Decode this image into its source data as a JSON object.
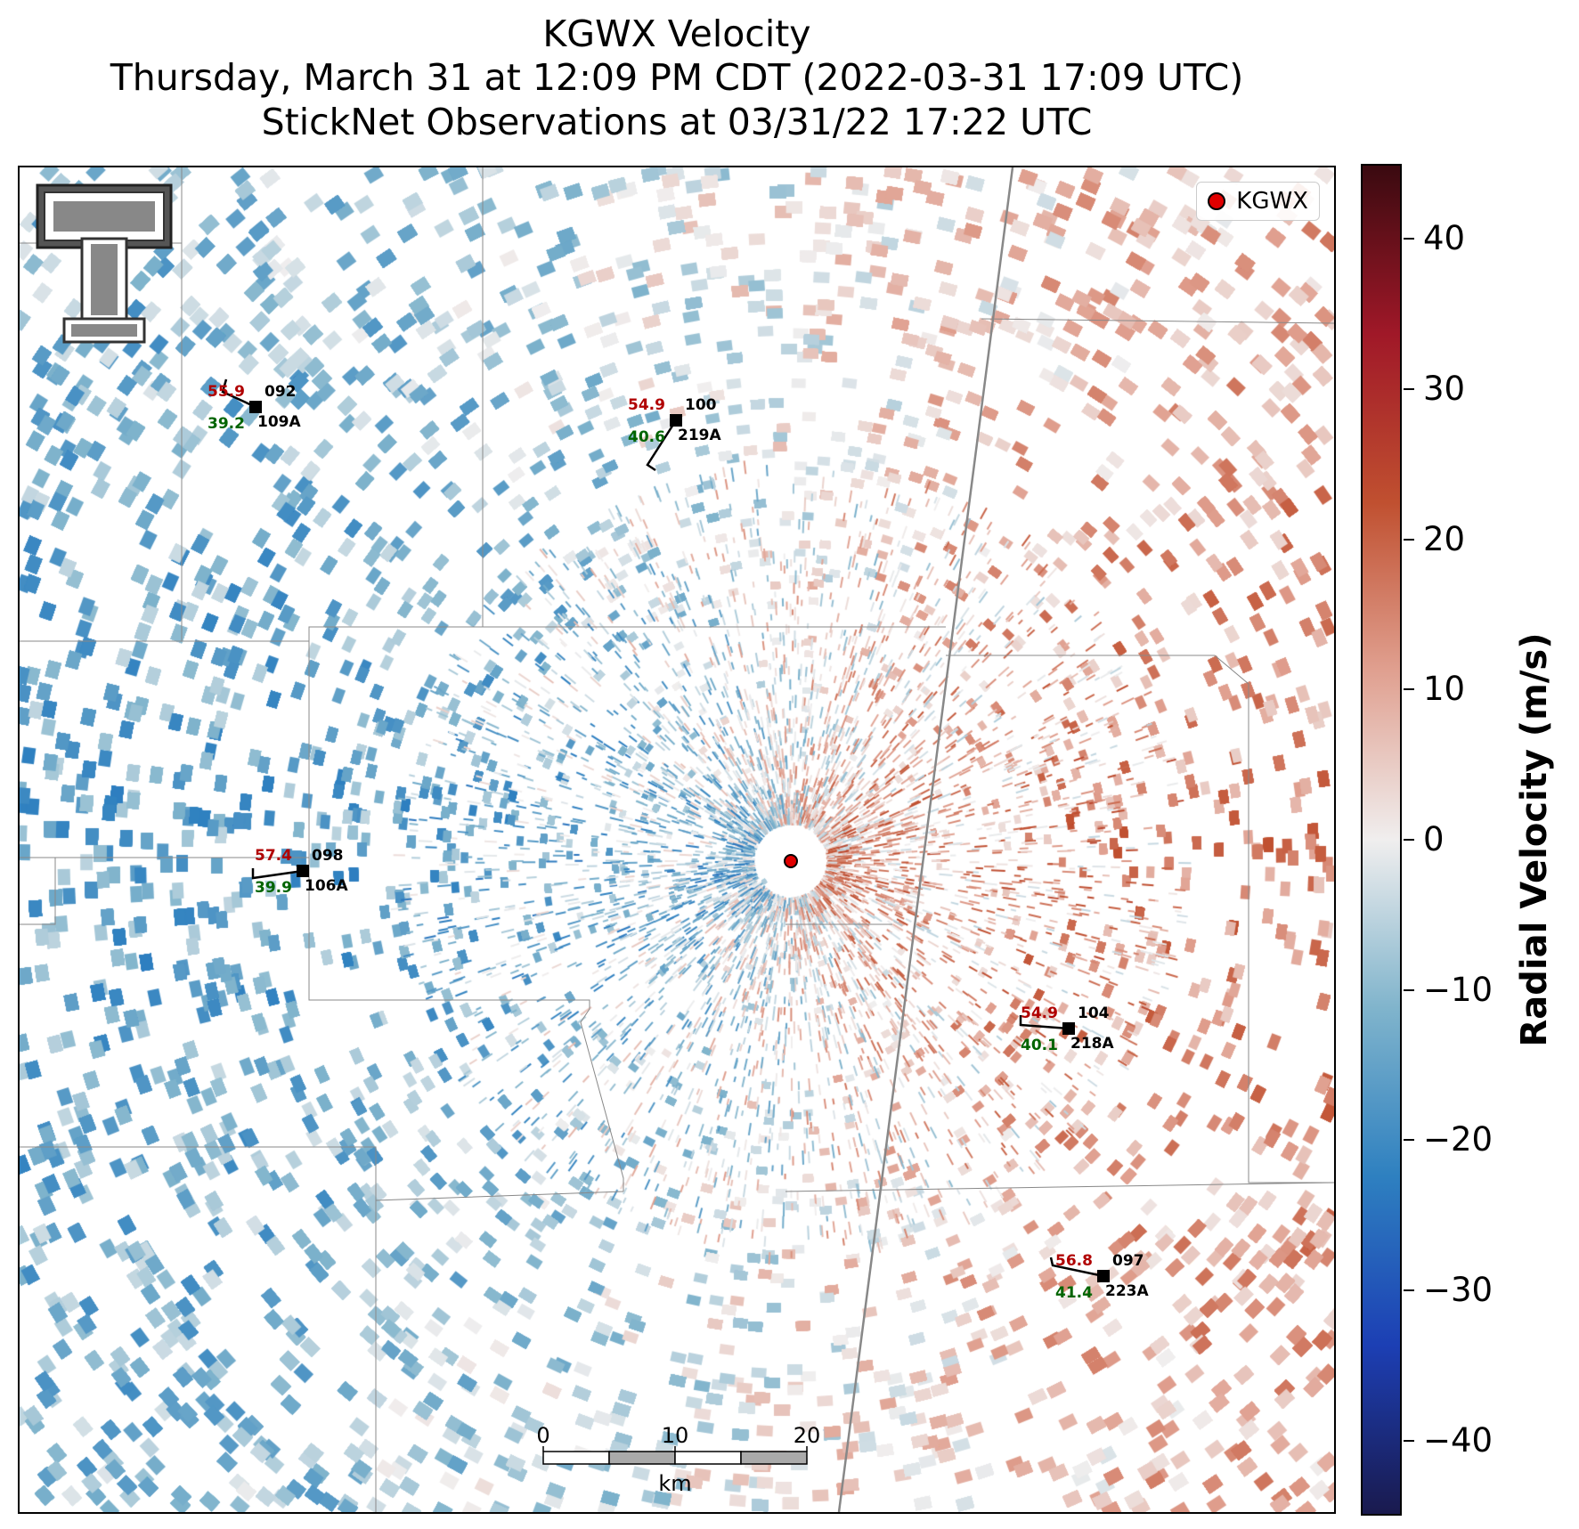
{
  "title": {
    "line1": "KGWX Velocity",
    "line2": "Thursday, March 31 at 12:09 PM CDT (2022-03-31 17:09 UTC)",
    "line3": "StickNet Observations at 03/31/22 17:22 UTC"
  },
  "legend": {
    "label": "KGWX",
    "marker_color": "#e00000"
  },
  "radar": {
    "name": "KGWX",
    "marker_color": "#e00000"
  },
  "stations": [
    {
      "id": "109A",
      "top_value": "55.9",
      "right_value": "092",
      "bottom_value": "39.2"
    },
    {
      "id": "219A",
      "top_value": "54.9",
      "right_value": "100",
      "bottom_value": "40.6"
    },
    {
      "id": "106A",
      "top_value": "57.4",
      "right_value": "098",
      "bottom_value": "39.9"
    },
    {
      "id": "218A",
      "top_value": "54.9",
      "right_value": "104",
      "bottom_value": "40.1"
    },
    {
      "id": "223A",
      "top_value": "56.8",
      "right_value": "097",
      "bottom_value": "41.4"
    }
  ],
  "colors": {
    "top_value": "#b00000",
    "bottom_value": "#006400",
    "id_text": "#000000"
  },
  "scale_bar": {
    "ticks": [
      "0",
      "10",
      "20"
    ],
    "unit": "km"
  },
  "colorbar": {
    "label": "Radial Velocity (m/s)",
    "range": [
      -45,
      45
    ],
    "ticks": [
      "40",
      "30",
      "20",
      "10",
      "0",
      "−10",
      "−20",
      "−30",
      "−40"
    ],
    "colors_low_to_high": [
      "#1a1a4e",
      "#1c3fb4",
      "#2e80c0",
      "#80b4cc",
      "#f0eeee",
      "#e0a090",
      "#c05030",
      "#a01828",
      "#3a0a10"
    ]
  }
}
